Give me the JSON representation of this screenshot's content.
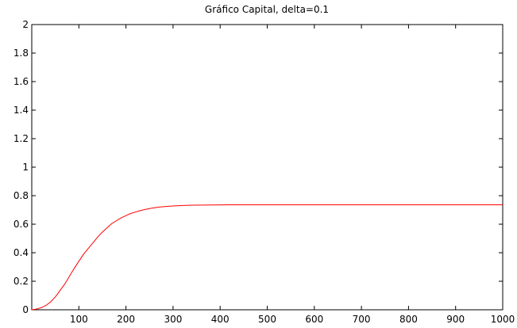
{
  "chart_data": {
    "type": "line",
    "title": "Gráfico Capital, delta=0.1",
    "xlabel": "",
    "ylabel": "",
    "xlim": [
      0,
      1000
    ],
    "ylim": [
      0,
      2
    ],
    "x_ticks": [
      100,
      200,
      300,
      400,
      500,
      600,
      700,
      800,
      900,
      1000
    ],
    "x_tick_labels": [
      "100",
      "200",
      "300",
      "400",
      "500",
      "600",
      "700",
      "800",
      "900",
      "1000"
    ],
    "y_ticks": [
      0,
      0.2,
      0.4,
      0.6,
      0.8,
      1,
      1.2,
      1.4,
      1.6,
      1.8,
      2
    ],
    "y_tick_labels": [
      "0",
      "0.2",
      "0.4",
      "0.6",
      "0.8",
      "1",
      "1.2",
      "1.4",
      "1.6",
      "1.8",
      "2"
    ],
    "grid": false,
    "series": [
      {
        "color": "#ff0000",
        "x": [
          0,
          10,
          20,
          30,
          40,
          50,
          60,
          70,
          80,
          90,
          100,
          110,
          120,
          130,
          140,
          150,
          160,
          170,
          180,
          190,
          200,
          210,
          220,
          230,
          240,
          250,
          260,
          270,
          280,
          290,
          300,
          320,
          340,
          360,
          380,
          400,
          420,
          450,
          500,
          600,
          700,
          800,
          900,
          1000
        ],
        "y": [
          0.0,
          0.005,
          0.015,
          0.03,
          0.055,
          0.09,
          0.135,
          0.18,
          0.235,
          0.29,
          0.34,
          0.39,
          0.43,
          0.47,
          0.51,
          0.545,
          0.575,
          0.605,
          0.625,
          0.645,
          0.66,
          0.675,
          0.685,
          0.695,
          0.703,
          0.71,
          0.715,
          0.72,
          0.723,
          0.726,
          0.728,
          0.731,
          0.733,
          0.734,
          0.735,
          0.7355,
          0.736,
          0.736,
          0.736,
          0.736,
          0.736,
          0.736,
          0.736,
          0.736
        ]
      }
    ]
  }
}
